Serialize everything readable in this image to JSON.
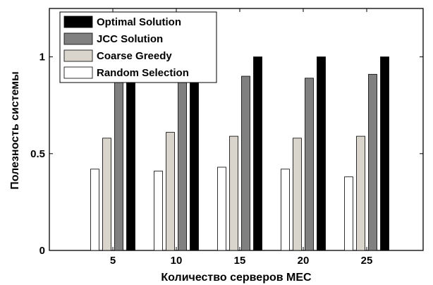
{
  "chart_data": {
    "type": "bar",
    "title": "",
    "xlabel": "Количество серверов МЕС",
    "ylabel": "Полезность системы",
    "categories": [
      "5",
      "10",
      "15",
      "20",
      "25"
    ],
    "ylim": [
      0,
      1.25
    ],
    "yticks": [
      "0",
      "0.5",
      "1"
    ],
    "series": [
      {
        "name": "Random Selection",
        "color": "#ffffff",
        "values": [
          0.42,
          0.41,
          0.43,
          0.42,
          0.38
        ]
      },
      {
        "name": "Coarse Greedy",
        "color": "#d9d5cc",
        "values": [
          0.58,
          0.61,
          0.59,
          0.58,
          0.59
        ]
      },
      {
        "name": "JCC Solution",
        "color": "#808080",
        "values": [
          0.91,
          0.87,
          0.9,
          0.89,
          0.91
        ]
      },
      {
        "name": "Optimal Solution",
        "color": "#000000",
        "values": [
          1.0,
          1.0,
          1.0,
          1.0,
          1.0
        ]
      }
    ],
    "legend_order": [
      "Optimal Solution",
      "JCC Solution",
      "Coarse Greedy",
      "Random Selection"
    ],
    "legend_position": "top-left",
    "grid": false
  }
}
